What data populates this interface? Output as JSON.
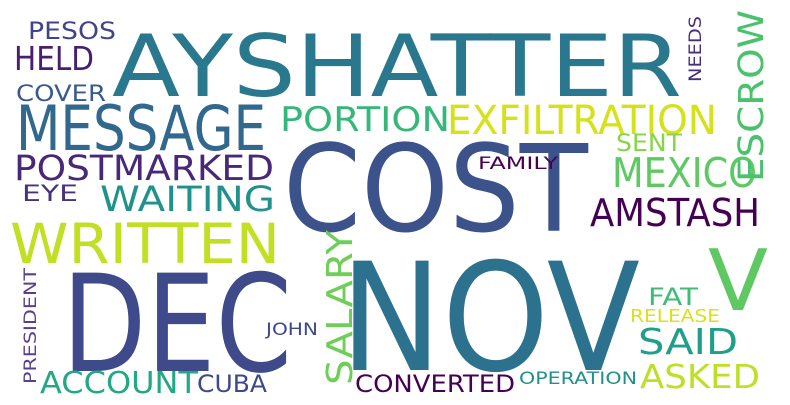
{
  "words": [
    {
      "text": "AYSHATTER",
      "color": "#2a788e"
    },
    {
      "text": "COST",
      "color": "#3b528b"
    },
    {
      "text": "NOV",
      "color": "#2c728e"
    },
    {
      "text": "DEC",
      "color": "#3e4a89"
    },
    {
      "text": "MESSAGE",
      "color": "#31688e"
    },
    {
      "text": "EXFILTRATION",
      "color": "#d5e21a"
    },
    {
      "text": "WRITTEN",
      "color": "#c2df23"
    },
    {
      "text": "POSTMARKED",
      "color": "#482878"
    },
    {
      "text": "AMSTASH",
      "color": "#440154"
    },
    {
      "text": "MEXICO",
      "color": "#5ec962"
    },
    {
      "text": "PORTION",
      "color": "#35b779"
    },
    {
      "text": "ESCROW",
      "color": "#4ac16d"
    },
    {
      "text": "V",
      "color": "#5ec962"
    },
    {
      "text": "WAITING",
      "color": "#21918c"
    },
    {
      "text": "HELD",
      "color": "#481f70"
    },
    {
      "text": "SAID",
      "color": "#1f9e89"
    },
    {
      "text": "ACCOUNT",
      "color": "#22a884"
    },
    {
      "text": "ASKED",
      "color": "#bddf26"
    },
    {
      "text": "SALARY",
      "color": "#6ece58"
    },
    {
      "text": "CONVERTED",
      "color": "#440154"
    },
    {
      "text": "CUBA",
      "color": "#3e4989"
    },
    {
      "text": "PESOS",
      "color": "#414487"
    },
    {
      "text": "COVER",
      "color": "#38598c"
    },
    {
      "text": "EYE",
      "color": "#46327e"
    },
    {
      "text": "SENT",
      "color": "#86d549"
    },
    {
      "text": "FAT",
      "color": "#3dbc74"
    },
    {
      "text": "FAMILY",
      "color": "#440154"
    },
    {
      "text": "NEEDS",
      "color": "#472d7b"
    },
    {
      "text": "JOHN",
      "color": "#3e4989"
    },
    {
      "text": "RELEASE",
      "color": "#d8e219"
    },
    {
      "text": "OPERATION",
      "color": "#21918c"
    },
    {
      "text": "PRESIDENT",
      "color": "#5b3f8f"
    }
  ]
}
